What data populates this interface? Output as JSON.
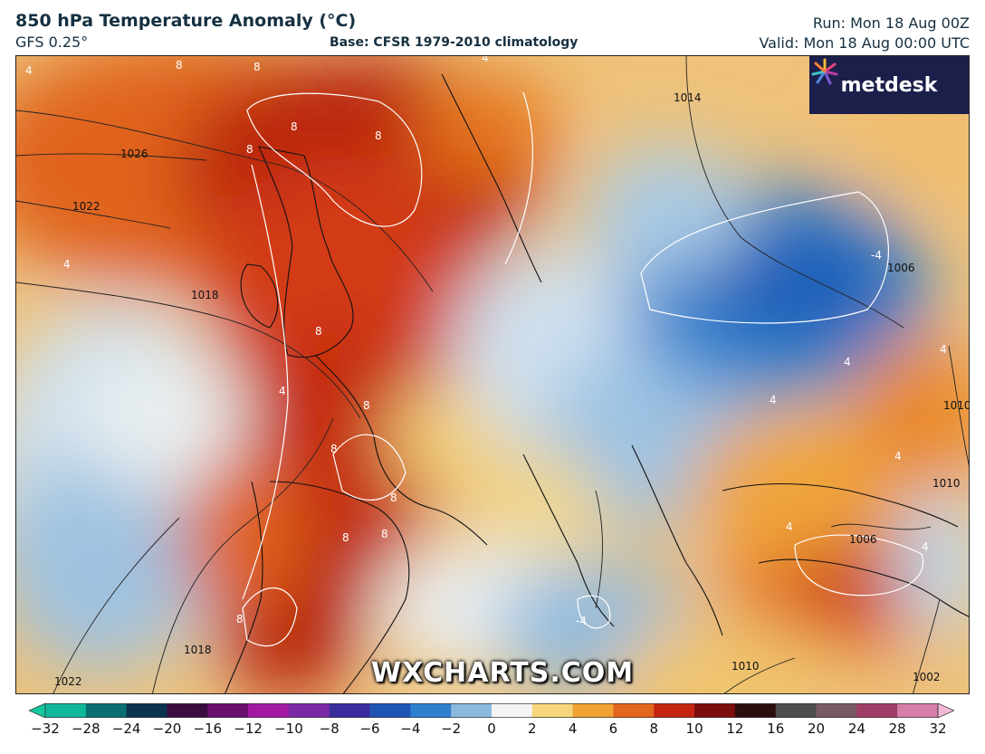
{
  "header": {
    "title": "850 hPa Temperature Anomaly (°C)",
    "model": "GFS 0.25°",
    "base": "Base: CFSR 1979-2010 climatology",
    "run": "Run: Mon 18 Aug 00Z",
    "valid": "Valid: Mon 18 Aug 00:00 UTC"
  },
  "logo": {
    "text": "metdesk",
    "icon": "metdesk-flower-logo"
  },
  "watermark": "WXCHARTS.COM",
  "colorbar": {
    "ticks": [
      "−32",
      "−28",
      "−24",
      "−20",
      "−16",
      "−12",
      "−10",
      "−8",
      "−6",
      "−4",
      "−2",
      "0",
      "2",
      "4",
      "6",
      "8",
      "10",
      "12",
      "16",
      "20",
      "24",
      "28",
      "32"
    ],
    "colors": [
      "#0fb89a",
      "#0a6e73",
      "#0b3350",
      "#3a0d3f",
      "#6b0f6e",
      "#a317a3",
      "#7b2aa6",
      "#3a2e9e",
      "#1f55b5",
      "#2f7fcf",
      "#8ab9de",
      "#f4f4f4",
      "#f5d67a",
      "#f1a233",
      "#e3661d",
      "#c4260f",
      "#7a0d0d",
      "#2c0d0d",
      "#4d4d4d",
      "#7a5a62",
      "#a03d66",
      "#d77ea8"
    ],
    "min_color": "#12c9a0",
    "max_color": "#f2b9d6"
  },
  "isobar_labels": [
    "1026",
    "1022",
    "1018",
    "1018",
    "1022",
    "1014",
    "1006",
    "1010",
    "1010",
    "1010",
    "1006",
    "1002"
  ],
  "anomaly_labels": [
    "4",
    "8",
    "8",
    "8",
    "8",
    "8",
    "8",
    "4",
    "4",
    "4",
    "8",
    "8",
    "8",
    "8",
    "8",
    "8",
    "-4",
    "-4",
    "4",
    "4",
    "4",
    "4",
    "4",
    "4"
  ]
}
